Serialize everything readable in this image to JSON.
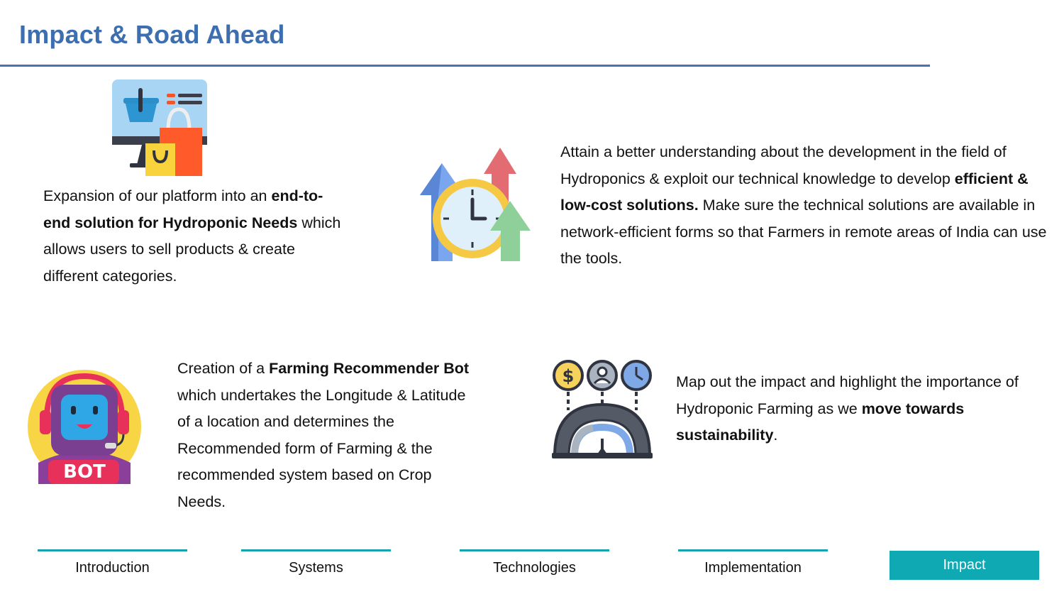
{
  "slide": {
    "title": "Impact & Road Ahead"
  },
  "blocks": {
    "platform": {
      "t1": "Expansion of our platform into an ",
      "b1": "end-to-end solution for Hydroponic Needs",
      "t2": " which allows users to sell products & create different categories."
    },
    "knowledge": {
      "t1": "Attain a better understanding about the development in the field of Hydroponics & exploit our technical knowledge to develop ",
      "b1": "efficient & low-cost solutions.",
      "t2": " Make sure the technical solutions are available in network-efficient forms so that Farmers in remote areas of India can use the tools."
    },
    "bot": {
      "t1": "Creation of a ",
      "b1": "Farming Recommender Bot",
      "t2": " which undertakes the Longitude & Latitude of a location and determines the Recommended form of Farming & the recommended system based on Crop Needs."
    },
    "impact": {
      "t1": "Map out the impact and highlight the importance of Hydroponic Farming as we ",
      "b1": "move towards sustainability",
      "t2": "."
    }
  },
  "icons": {
    "shop": "online-shopping-icon",
    "growth": "growth-clock-icon",
    "bot": "bot-icon",
    "impact": "performance-gauge-icon",
    "bot_label": "BOT"
  },
  "nav": {
    "introduction": "Introduction",
    "systems": "Systems",
    "technologies": "Technologies",
    "implementation": "Implementation",
    "impact": "Impact"
  },
  "colors": {
    "title": "#3d6eb0",
    "accent": "#17a2ad",
    "active_tab": "#0fa9b3"
  }
}
